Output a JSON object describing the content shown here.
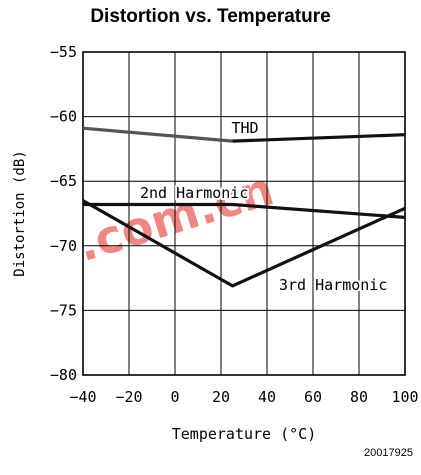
{
  "chart_data": {
    "type": "line",
    "title": "Distortion vs. Temperature",
    "xlabel": "Temperature (°C)",
    "ylabel": "Distortion (dB)",
    "xlim": [
      -40,
      100
    ],
    "ylim": [
      -80,
      -55
    ],
    "xticks": [
      -40,
      -20,
      0,
      20,
      40,
      60,
      80,
      100
    ],
    "yticks": [
      -55,
      -60,
      -65,
      -70,
      -75,
      -80
    ],
    "grid": true,
    "series": [
      {
        "name": "THD",
        "color": "#555555",
        "x": [
          -40,
          25
        ],
        "y": [
          -60.9,
          -61.9
        ]
      },
      {
        "name": "THD",
        "color": "#111111",
        "x": [
          25,
          100
        ],
        "y": [
          -61.9,
          -61.4
        ]
      },
      {
        "name": "2nd Harmonic",
        "color": "#111111",
        "x": [
          -40,
          25,
          100
        ],
        "y": [
          -66.8,
          -66.8,
          -67.8
        ]
      },
      {
        "name": "3rd Harmonic",
        "color": "#111111",
        "x": [
          -40,
          25,
          100
        ],
        "y": [
          -66.5,
          -73.1,
          -67.1
        ]
      }
    ],
    "annotations": [
      "THD",
      "2nd Harmonic",
      "3rd Harmonic"
    ],
    "watermark": ".com.cn"
  },
  "figure_id": "20017925"
}
